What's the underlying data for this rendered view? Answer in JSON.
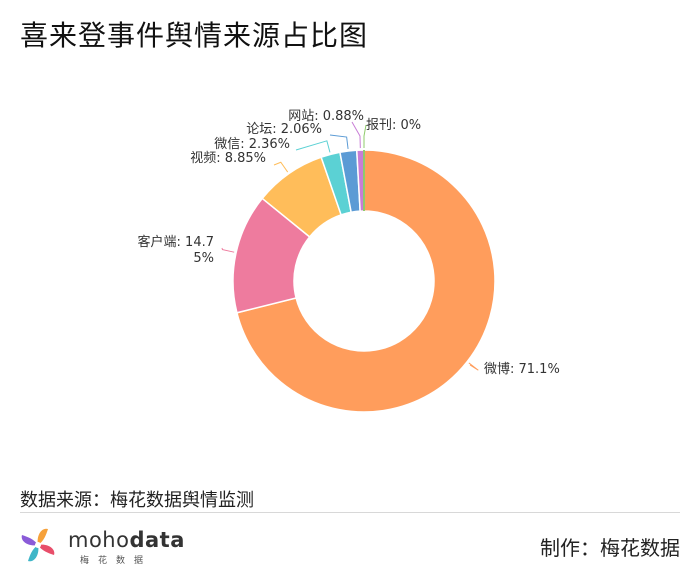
{
  "title": "喜来登事件舆情来源占比图",
  "chart_data": {
    "type": "pie",
    "donut": true,
    "series": [
      {
        "name": "微博",
        "value": 71.1,
        "label": "微博: 71.1%",
        "color": "#FF9D5C"
      },
      {
        "name": "客户端",
        "value": 14.75,
        "label": "客户端: 14.75%",
        "color": "#EE7B9E"
      },
      {
        "name": "视频",
        "value": 8.85,
        "label": "视频: 8.85%",
        "color": "#FFBD5A"
      },
      {
        "name": "微信",
        "value": 2.36,
        "label": "微信: 2.36%",
        "color": "#5BD1D4"
      },
      {
        "name": "论坛",
        "value": 2.06,
        "label": "论坛: 2.06%",
        "color": "#5B9BD5"
      },
      {
        "name": "网站",
        "value": 0.88,
        "label": "网站: 0.88%",
        "color": "#C87DD6"
      },
      {
        "name": "报刊",
        "value": 0,
        "label": "报刊: 0%",
        "color": "#8FCB6B"
      }
    ]
  },
  "footer": {
    "source": "数据来源：梅花数据舆情监测",
    "maker": "制作：梅花数据",
    "logo_text_light": "moho",
    "logo_text_bold": "data",
    "logo_sub": "梅花数据"
  }
}
